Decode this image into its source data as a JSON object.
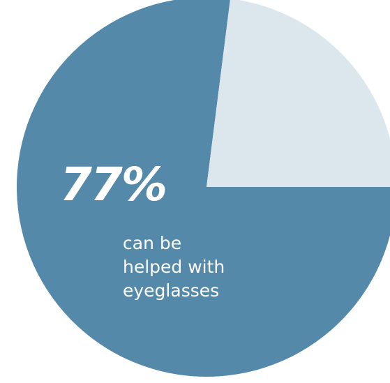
{
  "chart_data": {
    "type": "pie",
    "slices": [
      {
        "label": "77%",
        "value": 77,
        "color": "#5589aa"
      },
      {
        "label": "",
        "value": 23,
        "color": "#dce6ed"
      }
    ],
    "annotation": {
      "value": "77%",
      "lines": [
        "can be",
        "helped with",
        "eyeglasses"
      ]
    }
  }
}
